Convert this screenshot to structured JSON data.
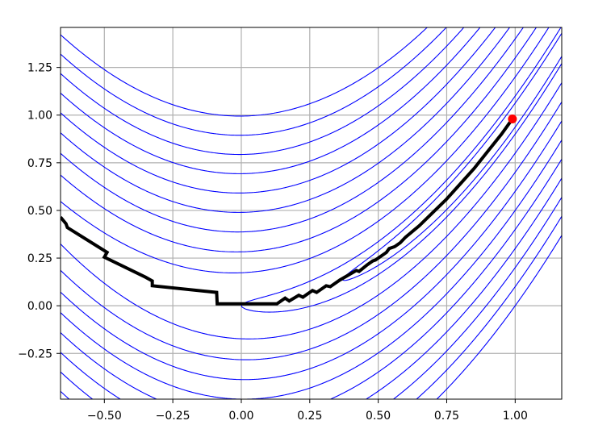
{
  "chart_data": {
    "type": "line",
    "xlim": [
      -0.66,
      1.17
    ],
    "ylim": [
      -0.49,
      1.46
    ],
    "x_ticks": [
      -0.5,
      -0.25,
      0.0,
      0.25,
      0.5,
      0.75,
      1.0
    ],
    "x_tick_labels": [
      "−0.50",
      "−0.25",
      "0.00",
      "0.25",
      "0.50",
      "0.75",
      "1.00"
    ],
    "y_ticks": [
      -0.25,
      0.0,
      0.25,
      0.5,
      0.75,
      1.0,
      1.25
    ],
    "y_tick_labels": [
      "−0.25",
      "0.00",
      "0.25",
      "0.50",
      "0.75",
      "1.00",
      "1.25"
    ],
    "grid": true,
    "contour_function": "rosenbrock",
    "contour_levels": [
      0.4,
      1,
      4,
      9,
      16,
      25,
      36,
      49,
      64,
      81,
      100
    ],
    "colors": {
      "contour": "#0000ff",
      "path": "#000000",
      "marker": "#ff0000",
      "grid": "#b0b0b0"
    },
    "series": [
      {
        "values": [
          [
            -0.66,
            0.465
          ],
          [
            -0.64,
            0.43
          ],
          [
            -0.635,
            0.41
          ],
          [
            -0.49,
            0.28
          ],
          [
            -0.5,
            0.255
          ],
          [
            -0.35,
            0.15
          ],
          [
            -0.325,
            0.13
          ],
          [
            -0.325,
            0.105
          ],
          [
            -0.09,
            0.07
          ],
          [
            -0.088,
            0.01
          ],
          [
            0.13,
            0.01
          ],
          [
            0.16,
            0.04
          ],
          [
            0.175,
            0.025
          ],
          [
            0.21,
            0.055
          ],
          [
            0.225,
            0.045
          ],
          [
            0.26,
            0.08
          ],
          [
            0.275,
            0.07
          ],
          [
            0.31,
            0.105
          ],
          [
            0.325,
            0.1
          ],
          [
            0.36,
            0.135
          ],
          [
            0.42,
            0.185
          ],
          [
            0.43,
            0.18
          ],
          [
            0.46,
            0.215
          ],
          [
            0.48,
            0.235
          ],
          [
            0.49,
            0.24
          ],
          [
            0.53,
            0.28
          ],
          [
            0.54,
            0.3
          ],
          [
            0.56,
            0.31
          ],
          [
            0.58,
            0.33
          ],
          [
            0.6,
            0.36
          ],
          [
            0.65,
            0.42
          ],
          [
            0.7,
            0.49
          ],
          [
            0.75,
            0.56
          ],
          [
            0.8,
            0.64
          ],
          [
            0.85,
            0.72
          ],
          [
            0.9,
            0.81
          ],
          [
            0.95,
            0.9
          ],
          [
            0.985,
            0.97
          ]
        ]
      }
    ],
    "marker_point": [
      0.99,
      0.98
    ]
  }
}
